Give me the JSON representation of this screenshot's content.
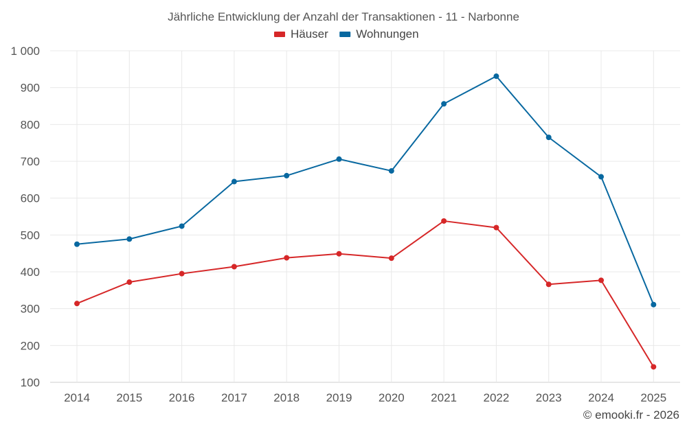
{
  "chart_data": {
    "type": "line",
    "title": "Jährliche Entwicklung der Anzahl der Transaktionen - 11 - Narbonne",
    "categories": [
      "2014",
      "2015",
      "2016",
      "2017",
      "2018",
      "2019",
      "2020",
      "2021",
      "2022",
      "2023",
      "2024",
      "2025"
    ],
    "series": [
      {
        "name": "Häuser",
        "color": "#d62728",
        "values": [
          314,
          372,
          395,
          414,
          438,
          449,
          437,
          538,
          520,
          366,
          377,
          142
        ]
      },
      {
        "name": "Wohnungen",
        "color": "#0868a0",
        "values": [
          475,
          489,
          524,
          645,
          661,
          706,
          674,
          856,
          931,
          765,
          658,
          311
        ]
      }
    ],
    "ylim": [
      100,
      1000
    ],
    "yticks": [
      100,
      200,
      300,
      400,
      500,
      600,
      700,
      800,
      900,
      1000
    ],
    "ytick_labels": [
      "100",
      "200",
      "300",
      "400",
      "500",
      "600",
      "700",
      "800",
      "900",
      "1 000"
    ],
    "xlabel": "",
    "ylabel": "",
    "grid": true,
    "legend": "top-center"
  },
  "credit": "© emooki.fr - 2026"
}
